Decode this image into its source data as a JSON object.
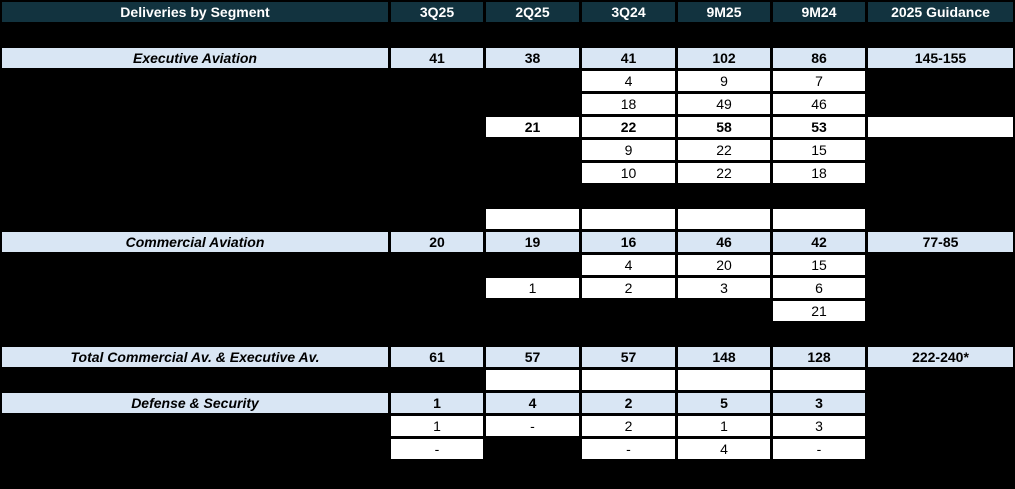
{
  "chart_data": {
    "type": "table",
    "title": "Deliveries by Segment",
    "columns": [
      "3Q25",
      "2Q25",
      "3Q24",
      "9M25",
      "9M24",
      "2025 Guidance"
    ],
    "rows": [
      {
        "style": "spacer",
        "label": null,
        "bold": false,
        "cells": [
          null,
          null,
          null,
          null,
          null,
          null
        ]
      },
      {
        "style": "segment",
        "label": "Executive Aviation",
        "bold": true,
        "cells": [
          "41",
          "38",
          "41",
          "102",
          "86",
          "145-155"
        ]
      },
      {
        "style": "data",
        "label": null,
        "bold": false,
        "cells": [
          null,
          null,
          "4",
          "9",
          "7",
          null
        ]
      },
      {
        "style": "data",
        "label": null,
        "bold": false,
        "cells": [
          null,
          null,
          "18",
          "49",
          "46",
          null
        ]
      },
      {
        "style": "data",
        "label": null,
        "bold": true,
        "cells": [
          null,
          "21",
          "22",
          "58",
          "53",
          ""
        ]
      },
      {
        "style": "data",
        "label": null,
        "bold": false,
        "cells": [
          null,
          null,
          "9",
          "22",
          "15",
          null
        ]
      },
      {
        "style": "data",
        "label": null,
        "bold": false,
        "cells": [
          null,
          null,
          "10",
          "22",
          "18",
          null
        ]
      },
      {
        "style": "spacer",
        "label": null,
        "bold": false,
        "cells": [
          null,
          null,
          null,
          null,
          null,
          null
        ]
      },
      {
        "style": "data",
        "label": null,
        "bold": false,
        "cells": [
          null,
          "",
          "",
          "",
          "",
          null
        ]
      },
      {
        "style": "segment",
        "label": "Commercial Aviation",
        "bold": true,
        "cells": [
          "20",
          "19",
          "16",
          "46",
          "42",
          "77-85"
        ]
      },
      {
        "style": "data",
        "label": null,
        "bold": false,
        "cells": [
          null,
          null,
          "4",
          "20",
          "15",
          null
        ]
      },
      {
        "style": "data",
        "label": null,
        "bold": false,
        "cells": [
          null,
          "1",
          "2",
          "3",
          "6",
          null
        ]
      },
      {
        "style": "data",
        "label": null,
        "bold": false,
        "cells": [
          null,
          null,
          null,
          null,
          "21",
          null
        ]
      },
      {
        "style": "spacer",
        "label": null,
        "bold": false,
        "cells": [
          null,
          null,
          null,
          null,
          null,
          null
        ]
      },
      {
        "style": "segment",
        "label": "Total Commercial Av. & Executive Av.",
        "bold": true,
        "cells": [
          "61",
          "57",
          "57",
          "148",
          "128",
          "222-240*"
        ]
      },
      {
        "style": "data",
        "label": null,
        "bold": false,
        "cells": [
          null,
          "",
          "",
          "",
          "",
          null
        ]
      },
      {
        "style": "segment",
        "label": "Defense & Security",
        "bold": true,
        "cells": [
          "1",
          "4",
          "2",
          "5",
          "3",
          null
        ]
      },
      {
        "style": "data",
        "label": null,
        "bold": false,
        "cells": [
          "1",
          "-",
          "2",
          "1",
          "3",
          null
        ]
      },
      {
        "style": "data",
        "label": null,
        "bold": false,
        "cells": [
          "-",
          null,
          "-",
          "4",
          "-",
          null
        ]
      }
    ]
  },
  "colors": {
    "header_bg": "#12333f",
    "header_text": "#ffffff",
    "segment_bg": "#d9e6f4",
    "cell_bg": "#ffffff",
    "page_bg": "#000000",
    "text": "#000000"
  }
}
